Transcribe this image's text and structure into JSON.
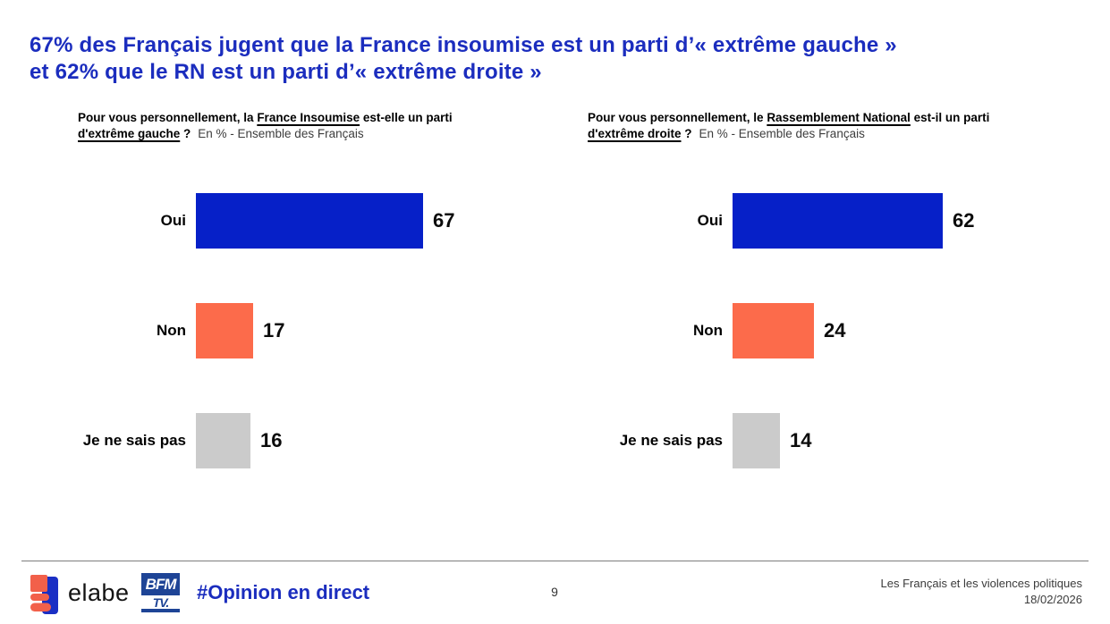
{
  "title": {
    "line1": "67% des Français jugent que la France insoumise est un parti d’« extrême gauche »",
    "line2": "et 62% que le RN est un parti d’« extrême droite »"
  },
  "questions": [
    {
      "lead": "Pour vous personnellement, la ",
      "party": "France Insoumise",
      "mid": " est-elle un parti",
      "term": "d'extrême gauche",
      "qmark": " ?",
      "note": "En % - Ensemble des Français"
    },
    {
      "lead": "Pour vous personnellement, le ",
      "party": "Rassemblement National",
      "mid": " est-il un parti",
      "term": "d'extrême droite",
      "qmark": " ?",
      "note": "En % - Ensemble des Français"
    }
  ],
  "chart_data": [
    {
      "type": "bar",
      "orientation": "horizontal",
      "title": "Pour vous personnellement, la France Insoumise est-elle un parti d'extrême gauche ?",
      "subtitle": "En % - Ensemble des Français",
      "categories": [
        "Oui",
        "Non",
        "Je ne sais pas"
      ],
      "values": [
        67,
        17,
        16
      ],
      "unit": "%",
      "xlim": [
        0,
        100
      ],
      "colors": [
        "#0620c8",
        "#fc6b4b",
        "#cbcbcb"
      ],
      "value_labels": true,
      "grid": false,
      "legend": false
    },
    {
      "type": "bar",
      "orientation": "horizontal",
      "title": "Pour vous personnellement, le Rassemblement National est-il un parti d'extrême droite ?",
      "subtitle": "En % - Ensemble des Français",
      "categories": [
        "Oui",
        "Non",
        "Je ne sais pas"
      ],
      "values": [
        62,
        24,
        14
      ],
      "unit": "%",
      "xlim": [
        0,
        100
      ],
      "colors": [
        "#0620c8",
        "#fc6b4b",
        "#cbcbcb"
      ],
      "value_labels": true,
      "grid": false,
      "legend": false
    }
  ],
  "colors": {
    "title_blue": "#1b2dbe",
    "bar_blue": "#0620c8",
    "bar_orange": "#fc6b4b",
    "bar_gray": "#cbcbcb",
    "bfm_navy": "#1e4496",
    "elabe_orange": "#f2604a",
    "elabe_blue": "#1b2fc4"
  },
  "footer": {
    "brand": "elabe",
    "bfm_top": "BFM",
    "bfm_bottom": "TV.",
    "hashtag": "#Opinion en direct",
    "page_number": "9",
    "report_title": "Les Français et les violences politiques",
    "date": "18/02/2026"
  }
}
